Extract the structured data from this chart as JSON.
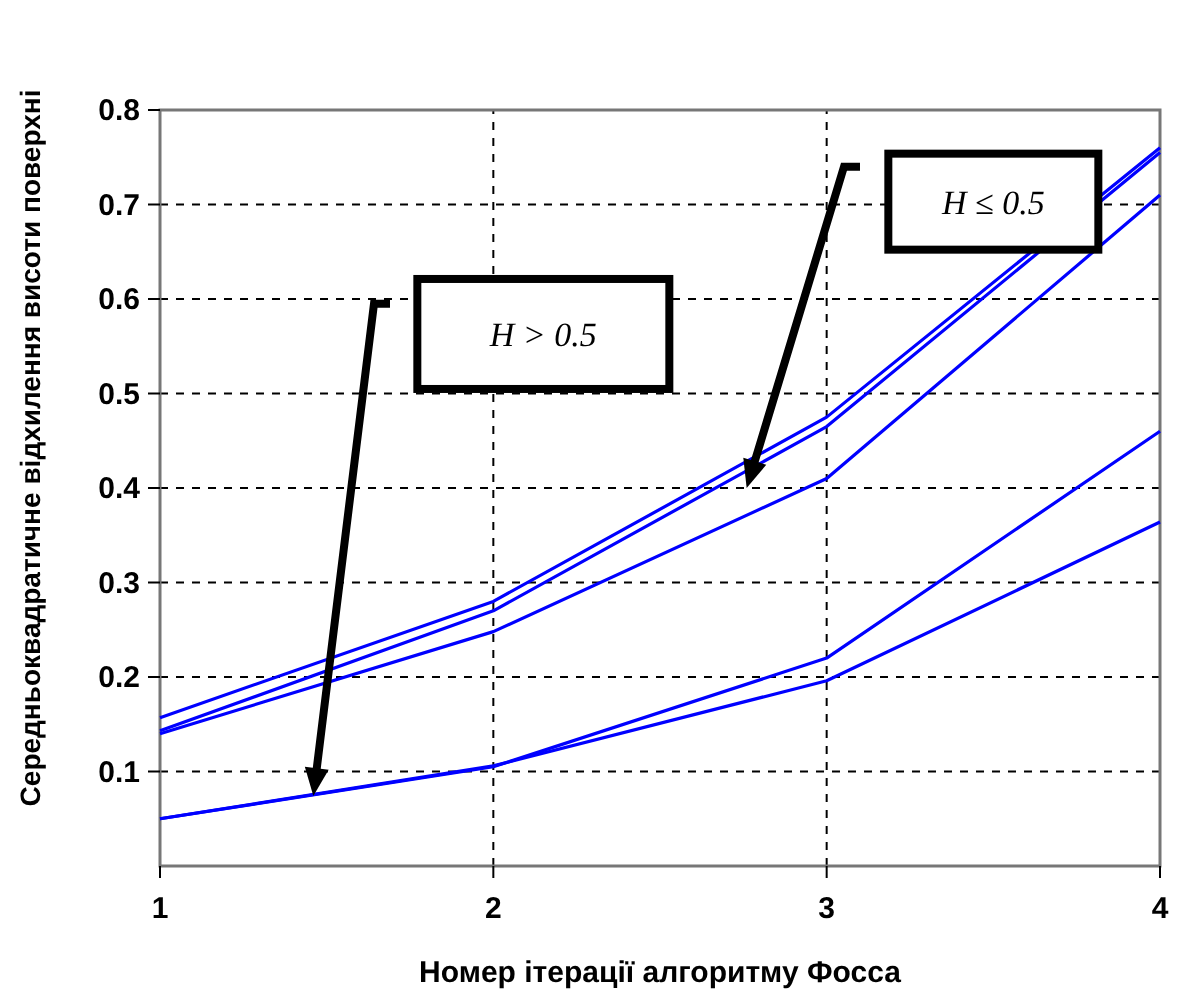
{
  "chart_data": {
    "type": "line",
    "xlabel": "Номер ітерації алгоритму Фосса",
    "ylabel": "Середньоквадратичне відхилення висоти поверхні",
    "x": [
      1,
      2,
      3,
      4
    ],
    "series": [
      {
        "color": "#0000ff",
        "values": [
          0.157,
          0.28,
          0.475,
          0.76
        ]
      },
      {
        "color": "#0000ff",
        "values": [
          0.143,
          0.27,
          0.465,
          0.755
        ]
      },
      {
        "color": "#0000ff",
        "values": [
          0.14,
          0.248,
          0.41,
          0.71
        ]
      },
      {
        "color": "#0000ff",
        "values": [
          0.05,
          0.105,
          0.22,
          0.46
        ]
      },
      {
        "color": "#0000ff",
        "values": [
          0.05,
          0.106,
          0.196,
          0.364
        ]
      }
    ],
    "xlim": [
      1,
      4
    ],
    "ylim": [
      0,
      0.8
    ],
    "xticks": [
      1,
      2,
      3,
      4
    ],
    "yticks": [
      0.1,
      0.2,
      0.3,
      0.4,
      0.5,
      0.6,
      0.7,
      0.8
    ],
    "grid": true,
    "marker": "none",
    "line_style": "solid",
    "annotations": [
      "H > 0.5",
      "H ≤ 0.5"
    ]
  }
}
